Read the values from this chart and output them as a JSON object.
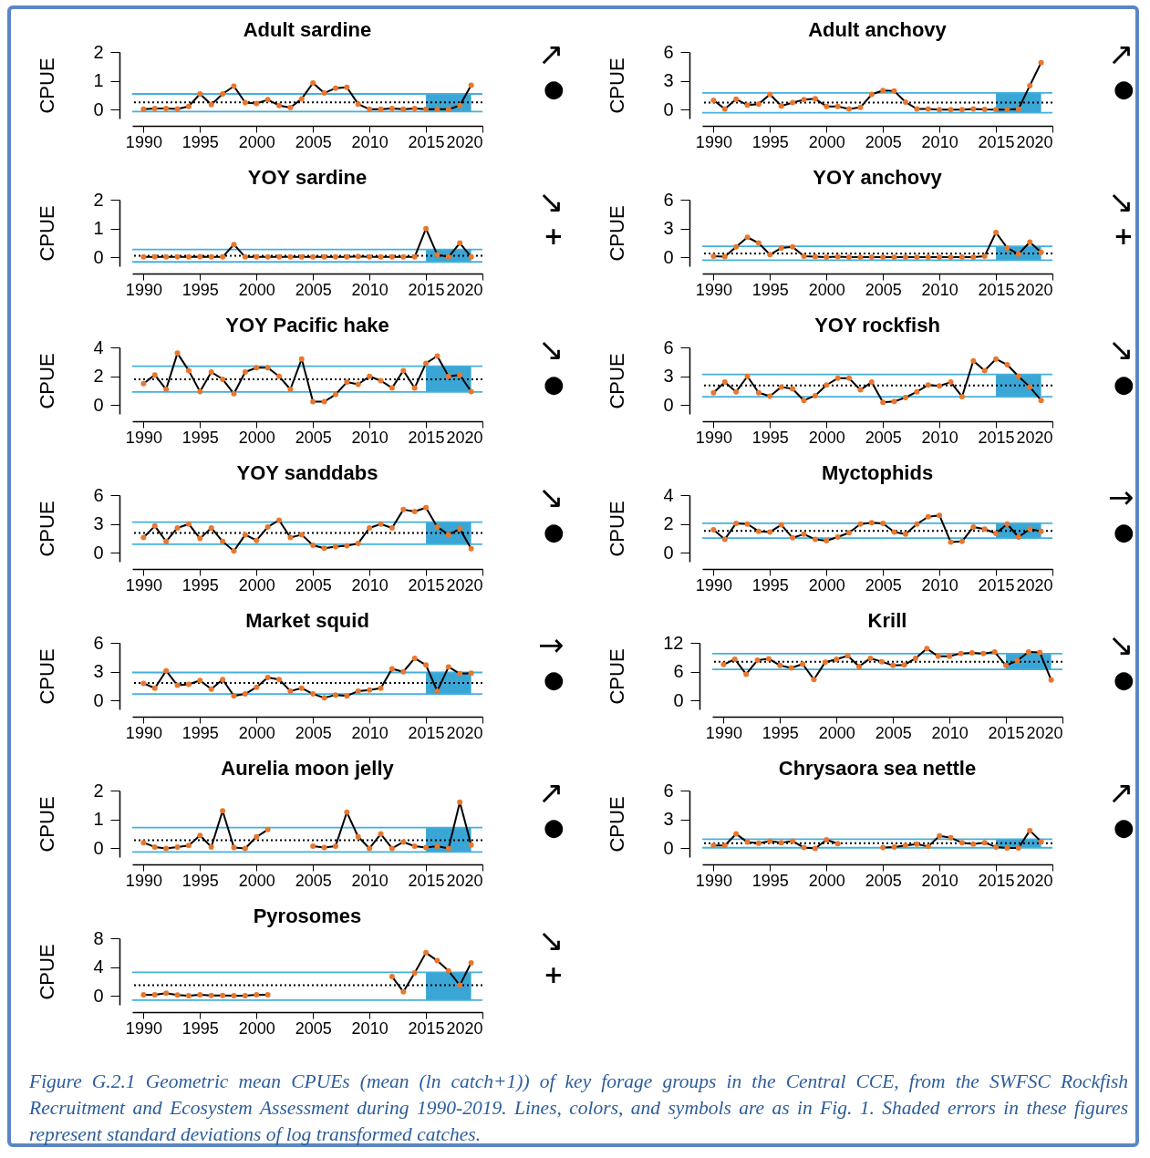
{
  "chart_data": [
    {
      "type": "line",
      "title": "Adult sardine",
      "ylabel": "CPUE",
      "x": [
        1990,
        1991,
        1992,
        1993,
        1994,
        1995,
        1996,
        1997,
        1998,
        1999,
        2000,
        2001,
        2002,
        2003,
        2004,
        2005,
        2006,
        2007,
        2008,
        2009,
        2010,
        2011,
        2012,
        2013,
        2014,
        2015,
        2016,
        2017,
        2018,
        2019
      ],
      "xlim": [
        1989,
        2020
      ],
      "xticks": [
        1990,
        1995,
        2000,
        2005,
        2010,
        2015,
        2020
      ],
      "ylim": [
        -0.3,
        2
      ],
      "yticks": [
        0,
        1,
        2
      ],
      "marker": "circle",
      "line_style": "solid",
      "series": [
        {
          "color": "#000000",
          "values": [
            0.02,
            0.05,
            0.05,
            0.03,
            0.12,
            0.55,
            0.18,
            0.55,
            0.82,
            0.25,
            0.22,
            0.35,
            0.15,
            0.08,
            0.38,
            0.93,
            0.58,
            0.75,
            0.78,
            0.2,
            0.02,
            0.02,
            0.05,
            0.02,
            0.05,
            0.02,
            0.02,
            0.02,
            0.15,
            0.85
          ]
        }
      ],
      "ref_lines": [
        {
          "axis": "y",
          "value": 0.26,
          "color": "#000000",
          "line_style": "dotted"
        },
        {
          "axis": "y",
          "value": 0.55,
          "color": "#45b0dc",
          "line_style": "solid"
        },
        {
          "axis": "y",
          "value": -0.06,
          "color": "#45b0dc",
          "line_style": "solid"
        }
      ],
      "bands": [
        {
          "axis": "x",
          "from": 2015,
          "to": 2019,
          "color": "#3aa6d5"
        }
      ],
      "annotations": [
        "↗",
        "●"
      ]
    },
    {
      "type": "line",
      "title": "Adult anchovy",
      "ylabel": "CPUE",
      "x": [
        1990,
        1991,
        1992,
        1993,
        1994,
        1995,
        1996,
        1997,
        1998,
        1999,
        2000,
        2001,
        2002,
        2003,
        2004,
        2005,
        2006,
        2007,
        2008,
        2009,
        2010,
        2011,
        2012,
        2013,
        2014,
        2015,
        2016,
        2017,
        2018,
        2019
      ],
      "xlim": [
        1989,
        2020
      ],
      "xticks": [
        1990,
        1995,
        2000,
        2005,
        2010,
        2015,
        2020
      ],
      "ylim": [
        -0.9,
        6
      ],
      "yticks": [
        0,
        3,
        6
      ],
      "marker": "circle",
      "line_style": "solid",
      "series": [
        {
          "color": "#000000",
          "values": [
            1.0,
            0.1,
            1.1,
            0.5,
            0.6,
            1.6,
            0.4,
            0.75,
            1.05,
            1.15,
            0.35,
            0.35,
            0.1,
            0.25,
            1.6,
            2.0,
            1.95,
            0.8,
            0.1,
            0.1,
            0.03,
            0.03,
            0.03,
            0.1,
            0.05,
            0.03,
            0.03,
            0.1,
            2.5,
            4.9
          ]
        }
      ],
      "ref_lines": [
        {
          "axis": "y",
          "value": 0.75,
          "color": "#000000",
          "line_style": "dotted"
        },
        {
          "axis": "y",
          "value": 1.75,
          "color": "#45b0dc",
          "line_style": "solid"
        },
        {
          "axis": "y",
          "value": -0.3,
          "color": "#45b0dc",
          "line_style": "solid"
        }
      ],
      "bands": [
        {
          "axis": "x",
          "from": 2015,
          "to": 2019,
          "color": "#3aa6d5"
        }
      ],
      "annotations": [
        "↗",
        "●"
      ]
    },
    {
      "type": "line",
      "title": "YOY sardine",
      "ylabel": "CPUE",
      "x": [
        1990,
        1991,
        1992,
        1993,
        1994,
        1995,
        1996,
        1997,
        1998,
        1999,
        2000,
        2001,
        2002,
        2003,
        2004,
        2005,
        2006,
        2007,
        2008,
        2009,
        2010,
        2011,
        2012,
        2013,
        2014,
        2015,
        2016,
        2017,
        2018,
        2019
      ],
      "xlim": [
        1989,
        2020
      ],
      "xticks": [
        1990,
        1995,
        2000,
        2005,
        2010,
        2015,
        2020
      ],
      "ylim": [
        -0.3,
        2
      ],
      "yticks": [
        0,
        1,
        2
      ],
      "marker": "circle",
      "line_style": "solid",
      "series": [
        {
          "color": "#000000",
          "values": [
            0.02,
            0.02,
            0.02,
            0.02,
            0.02,
            0.03,
            0.02,
            0.02,
            0.45,
            0.02,
            0.02,
            0.02,
            0.02,
            0.02,
            0.02,
            0.02,
            0.02,
            0.02,
            0.02,
            0.04,
            0.02,
            0.02,
            0.02,
            0.02,
            0.02,
            1.0,
            0.1,
            0.02,
            0.5,
            0.02
          ]
        }
      ],
      "ref_lines": [
        {
          "axis": "y",
          "value": 0.06,
          "color": "#000000",
          "line_style": "dotted"
        },
        {
          "axis": "y",
          "value": 0.28,
          "color": "#45b0dc",
          "line_style": "solid"
        },
        {
          "axis": "y",
          "value": -0.15,
          "color": "#45b0dc",
          "line_style": "solid"
        }
      ],
      "bands": [
        {
          "axis": "x",
          "from": 2015,
          "to": 2019,
          "color": "#3aa6d5"
        }
      ],
      "annotations": [
        "↘",
        "+"
      ]
    },
    {
      "type": "line",
      "title": "YOY anchovy",
      "ylabel": "CPUE",
      "x": [
        1990,
        1991,
        1992,
        1993,
        1994,
        1995,
        1996,
        1997,
        1998,
        1999,
        2000,
        2001,
        2002,
        2003,
        2004,
        2005,
        2006,
        2007,
        2008,
        2009,
        2010,
        2011,
        2012,
        2013,
        2014,
        2015,
        2016,
        2017,
        2018,
        2019
      ],
      "xlim": [
        1989,
        2020
      ],
      "xticks": [
        1990,
        1995,
        2000,
        2005,
        2010,
        2015,
        2020
      ],
      "ylim": [
        -0.9,
        6
      ],
      "yticks": [
        0,
        3,
        6
      ],
      "marker": "circle",
      "line_style": "solid",
      "series": [
        {
          "color": "#000000",
          "values": [
            0.15,
            0.1,
            1.1,
            2.1,
            1.5,
            0.3,
            1.0,
            1.1,
            0.15,
            0.1,
            0.05,
            0.1,
            0.05,
            0.05,
            0.05,
            0.05,
            0.05,
            0.05,
            0.05,
            0.05,
            0.05,
            0.05,
            0.05,
            0.05,
            0.15,
            2.6,
            1.0,
            0.35,
            1.6,
            0.55
          ]
        }
      ],
      "ref_lines": [
        {
          "axis": "y",
          "value": 0.42,
          "color": "#000000",
          "line_style": "dotted"
        },
        {
          "axis": "y",
          "value": 1.17,
          "color": "#45b0dc",
          "line_style": "solid"
        },
        {
          "axis": "y",
          "value": -0.28,
          "color": "#45b0dc",
          "line_style": "solid"
        }
      ],
      "bands": [
        {
          "axis": "x",
          "from": 2015,
          "to": 2019,
          "color": "#3aa6d5"
        }
      ],
      "annotations": [
        "↘",
        "+"
      ]
    },
    {
      "type": "line",
      "title": "YOY Pacific hake",
      "ylabel": "CPUE",
      "x": [
        1990,
        1991,
        1992,
        1993,
        1994,
        1995,
        1996,
        1997,
        1998,
        1999,
        2000,
        2001,
        2002,
        2003,
        2004,
        2005,
        2006,
        2007,
        2008,
        2009,
        2010,
        2011,
        2012,
        2013,
        2014,
        2015,
        2016,
        2017,
        2018,
        2019
      ],
      "xlim": [
        1989,
        2020
      ],
      "xticks": [
        1990,
        1995,
        2000,
        2005,
        2010,
        2015,
        2020
      ],
      "ylim": [
        -0.6,
        4
      ],
      "yticks": [
        0,
        2,
        4
      ],
      "marker": "circle",
      "line_style": "solid",
      "series": [
        {
          "color": "#000000",
          "values": [
            1.5,
            2.1,
            1.1,
            3.6,
            2.4,
            0.95,
            2.3,
            1.8,
            0.8,
            2.3,
            2.6,
            2.6,
            2.0,
            1.1,
            3.2,
            0.25,
            0.25,
            0.75,
            1.6,
            1.45,
            2.0,
            1.7,
            1.2,
            2.4,
            1.2,
            2.9,
            3.4,
            2.0,
            2.1,
            0.95
          ]
        }
      ],
      "ref_lines": [
        {
          "axis": "y",
          "value": 1.8,
          "color": "#000000",
          "line_style": "dotted"
        },
        {
          "axis": "y",
          "value": 2.7,
          "color": "#45b0dc",
          "line_style": "solid"
        },
        {
          "axis": "y",
          "value": 0.92,
          "color": "#45b0dc",
          "line_style": "solid"
        }
      ],
      "bands": [
        {
          "axis": "x",
          "from": 2015,
          "to": 2019,
          "color": "#3aa6d5"
        }
      ],
      "annotations": [
        "↘",
        "●"
      ]
    },
    {
      "type": "line",
      "title": "YOY rockfish",
      "ylabel": "CPUE",
      "x": [
        1990,
        1991,
        1992,
        1993,
        1994,
        1995,
        1996,
        1997,
        1998,
        1999,
        2000,
        2001,
        2002,
        2003,
        2004,
        2005,
        2006,
        2007,
        2008,
        2009,
        2010,
        2011,
        2012,
        2013,
        2014,
        2015,
        2016,
        2017,
        2018,
        2019
      ],
      "xlim": [
        1989,
        2020
      ],
      "xticks": [
        1990,
        1995,
        2000,
        2005,
        2010,
        2015,
        2020
      ],
      "ylim": [
        -0.9,
        6
      ],
      "yticks": [
        0,
        3,
        6
      ],
      "marker": "circle",
      "line_style": "solid",
      "series": [
        {
          "color": "#000000",
          "values": [
            1.3,
            2.4,
            1.4,
            3.0,
            1.3,
            0.95,
            1.9,
            1.7,
            0.5,
            1.0,
            2.1,
            2.8,
            2.8,
            1.6,
            2.4,
            0.3,
            0.4,
            0.8,
            1.4,
            2.1,
            2.0,
            2.4,
            0.9,
            4.6,
            3.6,
            4.8,
            4.2,
            3.0,
            1.9,
            0.5
          ]
        }
      ],
      "ref_lines": [
        {
          "axis": "y",
          "value": 2.05,
          "color": "#000000",
          "line_style": "dotted"
        },
        {
          "axis": "y",
          "value": 3.2,
          "color": "#45b0dc",
          "line_style": "solid"
        },
        {
          "axis": "y",
          "value": 0.88,
          "color": "#45b0dc",
          "line_style": "solid"
        }
      ],
      "bands": [
        {
          "axis": "x",
          "from": 2015,
          "to": 2019,
          "color": "#3aa6d5"
        }
      ],
      "annotations": [
        "↘",
        "●"
      ]
    },
    {
      "type": "line",
      "title": "YOY sanddabs",
      "ylabel": "CPUE",
      "x": [
        1990,
        1991,
        1992,
        1993,
        1994,
        1995,
        1996,
        1997,
        1998,
        1999,
        2000,
        2001,
        2002,
        2003,
        2004,
        2005,
        2006,
        2007,
        2008,
        2009,
        2010,
        2011,
        2012,
        2013,
        2014,
        2015,
        2016,
        2017,
        2018,
        2019
      ],
      "xlim": [
        1989,
        2020
      ],
      "xticks": [
        1990,
        1995,
        2000,
        2005,
        2010,
        2015,
        2020
      ],
      "ylim": [
        -0.9,
        6
      ],
      "yticks": [
        0,
        3,
        6
      ],
      "marker": "circle",
      "line_style": "solid",
      "series": [
        {
          "color": "#000000",
          "values": [
            1.6,
            2.8,
            1.2,
            2.6,
            3.0,
            1.5,
            2.6,
            1.2,
            0.2,
            1.9,
            1.3,
            2.7,
            3.4,
            1.6,
            1.9,
            0.8,
            0.5,
            0.65,
            0.75,
            1.0,
            2.6,
            3.0,
            2.6,
            4.5,
            4.3,
            4.7,
            2.7,
            1.9,
            2.5,
            0.45
          ]
        }
      ],
      "ref_lines": [
        {
          "axis": "y",
          "value": 2.08,
          "color": "#000000",
          "line_style": "dotted"
        },
        {
          "axis": "y",
          "value": 3.2,
          "color": "#45b0dc",
          "line_style": "solid"
        },
        {
          "axis": "y",
          "value": 0.9,
          "color": "#45b0dc",
          "line_style": "solid"
        }
      ],
      "bands": [
        {
          "axis": "x",
          "from": 2015,
          "to": 2019,
          "color": "#3aa6d5"
        }
      ],
      "annotations": [
        "↘",
        "●"
      ]
    },
    {
      "type": "line",
      "title": "Myctophids",
      "ylabel": "CPUE",
      "x": [
        1990,
        1991,
        1992,
        1993,
        1994,
        1995,
        1996,
        1997,
        1998,
        1999,
        2000,
        2001,
        2002,
        2003,
        2004,
        2005,
        2006,
        2007,
        2008,
        2009,
        2010,
        2011,
        2012,
        2013,
        2014,
        2015,
        2016,
        2017,
        2018,
        2019
      ],
      "xlim": [
        1989,
        2020
      ],
      "xticks": [
        1990,
        1995,
        2000,
        2005,
        2010,
        2015,
        2020
      ],
      "ylim": [
        -0.6,
        4
      ],
      "yticks": [
        0,
        2,
        4
      ],
      "marker": "circle",
      "line_style": "solid",
      "series": [
        {
          "color": "#000000",
          "values": [
            1.6,
            0.95,
            2.05,
            2.0,
            1.5,
            1.45,
            1.95,
            1.05,
            1.3,
            0.95,
            0.85,
            1.1,
            1.4,
            2.0,
            2.1,
            2.05,
            1.45,
            1.3,
            2.0,
            2.5,
            2.6,
            0.75,
            0.8,
            1.8,
            1.65,
            1.35,
            2.0,
            1.1,
            1.65,
            1.5
          ]
        }
      ],
      "ref_lines": [
        {
          "axis": "y",
          "value": 1.53,
          "color": "#000000",
          "line_style": "dotted"
        },
        {
          "axis": "y",
          "value": 2.05,
          "color": "#45b0dc",
          "line_style": "solid"
        },
        {
          "axis": "y",
          "value": 1.03,
          "color": "#45b0dc",
          "line_style": "solid"
        }
      ],
      "bands": [
        {
          "axis": "x",
          "from": 2015,
          "to": 2019,
          "color": "#3aa6d5"
        }
      ],
      "annotations": [
        "→",
        "●"
      ]
    },
    {
      "type": "line",
      "title": "Market squid",
      "ylabel": "CPUE",
      "x": [
        1990,
        1991,
        1992,
        1993,
        1994,
        1995,
        1996,
        1997,
        1998,
        1999,
        2000,
        2001,
        2002,
        2003,
        2004,
        2005,
        2006,
        2007,
        2008,
        2009,
        2010,
        2011,
        2012,
        2013,
        2014,
        2015,
        2016,
        2017,
        2018,
        2019
      ],
      "xlim": [
        1989,
        2020
      ],
      "xticks": [
        1990,
        1995,
        2000,
        2005,
        2010,
        2015,
        2020
      ],
      "ylim": [
        -0.9,
        6
      ],
      "yticks": [
        0,
        3,
        6
      ],
      "marker": "circle",
      "line_style": "solid",
      "series": [
        {
          "color": "#000000",
          "values": [
            1.8,
            1.3,
            3.1,
            1.6,
            1.7,
            2.1,
            1.2,
            2.2,
            0.5,
            0.7,
            1.4,
            2.4,
            2.2,
            1.0,
            1.3,
            0.7,
            0.3,
            0.6,
            0.5,
            1.0,
            1.1,
            1.3,
            3.3,
            3.0,
            4.4,
            3.7,
            1.0,
            3.5,
            2.8,
            2.85
          ]
        }
      ],
      "ref_lines": [
        {
          "axis": "y",
          "value": 1.84,
          "color": "#000000",
          "line_style": "dotted"
        },
        {
          "axis": "y",
          "value": 2.93,
          "color": "#45b0dc",
          "line_style": "solid"
        },
        {
          "axis": "y",
          "value": 0.7,
          "color": "#45b0dc",
          "line_style": "solid"
        }
      ],
      "bands": [
        {
          "axis": "x",
          "from": 2015,
          "to": 2019,
          "color": "#3aa6d5"
        }
      ],
      "annotations": [
        "→",
        "●"
      ]
    },
    {
      "type": "line",
      "title": "Krill",
      "ylabel": "CPUE",
      "x": [
        1990,
        1991,
        1992,
        1993,
        1994,
        1995,
        1996,
        1997,
        1998,
        1999,
        2000,
        2001,
        2002,
        2003,
        2004,
        2005,
        2006,
        2007,
        2008,
        2009,
        2010,
        2011,
        2012,
        2013,
        2014,
        2015,
        2016,
        2017,
        2018,
        2019
      ],
      "xlim": [
        1989,
        2020
      ],
      "xticks": [
        1990,
        1995,
        2000,
        2005,
        2010,
        2015,
        2020
      ],
      "ylim": [
        -1.8,
        12
      ],
      "yticks": [
        0,
        6,
        12
      ],
      "marker": "circle",
      "line_style": "solid",
      "series": [
        {
          "color": "#000000",
          "values": [
            7.5,
            8.6,
            5.5,
            8.4,
            8.7,
            7.3,
            6.8,
            7.6,
            4.4,
            8.0,
            8.6,
            9.3,
            7.1,
            8.8,
            8.1,
            7.3,
            7.4,
            8.8,
            10.8,
            9.2,
            9.2,
            9.8,
            9.9,
            9.8,
            10.1,
            7.3,
            8.3,
            10.1,
            10.0,
            4.3
          ]
        }
      ],
      "ref_lines": [
        {
          "axis": "y",
          "value": 8.1,
          "color": "#000000",
          "line_style": "dotted"
        },
        {
          "axis": "y",
          "value": 9.75,
          "color": "#45b0dc",
          "line_style": "solid"
        },
        {
          "axis": "y",
          "value": 6.5,
          "color": "#45b0dc",
          "line_style": "solid"
        }
      ],
      "bands": [
        {
          "axis": "x",
          "from": 2015,
          "to": 2019,
          "color": "#3aa6d5"
        }
      ],
      "annotations": [
        "↘",
        "●"
      ]
    },
    {
      "type": "line",
      "title": "Aurelia moon jelly",
      "ylabel": "CPUE",
      "x": [
        1990,
        1991,
        1992,
        1993,
        1994,
        1995,
        1996,
        1997,
        1998,
        1999,
        2000,
        2001,
        2002,
        2003,
        2004,
        2005,
        2006,
        2007,
        2008,
        2009,
        2010,
        2011,
        2012,
        2013,
        2014,
        2015,
        2016,
        2017,
        2018,
        2019
      ],
      "xlim": [
        1989,
        2020
      ],
      "xticks": [
        1990,
        1995,
        2000,
        2005,
        2010,
        2015,
        2020
      ],
      "ylim": [
        -0.3,
        2
      ],
      "yticks": [
        0,
        1,
        2
      ],
      "marker": "circle",
      "line_style": "solid",
      "series": [
        {
          "color": "#000000",
          "values": [
            0.2,
            0.05,
            0.0,
            0.05,
            0.1,
            0.45,
            0.05,
            1.3,
            0.03,
            0.0,
            0.4,
            0.65,
            null,
            null,
            null,
            0.08,
            0.03,
            0.08,
            1.25,
            0.4,
            0.0,
            0.5,
            0.0,
            0.22,
            0.08,
            0.03,
            0.08,
            0.0,
            1.6,
            0.12
          ]
        }
      ],
      "ref_lines": [
        {
          "axis": "y",
          "value": 0.28,
          "color": "#000000",
          "line_style": "dotted"
        },
        {
          "axis": "y",
          "value": 0.72,
          "color": "#45b0dc",
          "line_style": "solid"
        },
        {
          "axis": "y",
          "value": -0.12,
          "color": "#45b0dc",
          "line_style": "solid"
        }
      ],
      "bands": [
        {
          "axis": "x",
          "from": 2015,
          "to": 2019,
          "color": "#3aa6d5"
        }
      ],
      "annotations": [
        "↗",
        "●"
      ]
    },
    {
      "type": "line",
      "title": "Chrysaora sea nettle",
      "ylabel": "CPUE",
      "x": [
        1990,
        1991,
        1992,
        1993,
        1994,
        1995,
        1996,
        1997,
        1998,
        1999,
        2000,
        2001,
        2002,
        2003,
        2004,
        2005,
        2006,
        2007,
        2008,
        2009,
        2010,
        2011,
        2012,
        2013,
        2014,
        2015,
        2016,
        2017,
        2018,
        2019
      ],
      "xlim": [
        1989,
        2020
      ],
      "xticks": [
        1990,
        1995,
        2000,
        2005,
        2010,
        2015,
        2020
      ],
      "ylim": [
        -0.9,
        6
      ],
      "yticks": [
        0,
        3,
        6
      ],
      "marker": "circle",
      "line_style": "solid",
      "series": [
        {
          "color": "#000000",
          "values": [
            0.3,
            0.3,
            1.5,
            0.65,
            0.55,
            0.75,
            0.6,
            0.75,
            0.1,
            0.0,
            0.9,
            0.5,
            null,
            null,
            null,
            0.1,
            0.15,
            0.3,
            0.45,
            0.2,
            1.3,
            1.1,
            0.6,
            0.45,
            0.6,
            0.15,
            0.05,
            0.05,
            1.85,
            0.7
          ]
        }
      ],
      "ref_lines": [
        {
          "axis": "y",
          "value": 0.53,
          "color": "#000000",
          "line_style": "dotted"
        },
        {
          "axis": "y",
          "value": 0.95,
          "color": "#45b0dc",
          "line_style": "solid"
        },
        {
          "axis": "y",
          "value": 0.07,
          "color": "#45b0dc",
          "line_style": "solid"
        }
      ],
      "bands": [
        {
          "axis": "x",
          "from": 2015,
          "to": 2019,
          "color": "#3aa6d5"
        }
      ],
      "annotations": [
        "↗",
        "●"
      ]
    },
    {
      "type": "line",
      "title": "Pyrosomes",
      "ylabel": "CPUE",
      "x": [
        1990,
        1991,
        1992,
        1993,
        1994,
        1995,
        1996,
        1997,
        1998,
        1999,
        2000,
        2001,
        2002,
        2003,
        2004,
        2005,
        2006,
        2007,
        2008,
        2009,
        2010,
        2011,
        2012,
        2013,
        2014,
        2015,
        2016,
        2017,
        2018,
        2019
      ],
      "xlim": [
        1989,
        2020
      ],
      "xticks": [
        1990,
        1995,
        2000,
        2005,
        2010,
        2015,
        2020
      ],
      "ylim": [
        -1.2,
        8
      ],
      "yticks": [
        0,
        4,
        8
      ],
      "marker": "circle",
      "line_style": "solid",
      "series": [
        {
          "color": "#000000",
          "values": [
            0.2,
            0.2,
            0.4,
            0.15,
            0.05,
            0.2,
            0.1,
            0.1,
            0.05,
            0.05,
            0.2,
            0.2,
            null,
            null,
            null,
            null,
            null,
            null,
            null,
            null,
            null,
            null,
            2.7,
            0.6,
            3.2,
            6.0,
            4.9,
            3.5,
            1.5,
            4.6
          ]
        }
      ],
      "ref_lines": [
        {
          "axis": "y",
          "value": 1.5,
          "color": "#000000",
          "line_style": "dotted"
        },
        {
          "axis": "y",
          "value": 3.3,
          "color": "#45b0dc",
          "line_style": "solid"
        },
        {
          "axis": "y",
          "value": -0.55,
          "color": "#45b0dc",
          "line_style": "solid"
        }
      ],
      "bands": [
        {
          "axis": "x",
          "from": 2015,
          "to": 2019,
          "color": "#3aa6d5"
        }
      ],
      "annotations": [
        "↘",
        "+",
        "Figure G.2.1 Geometric mean CPUEs (mean (ln catch+1)) of key forage groups in the Central CCE, from the SWFSC Rockfish Recruitment and Ecosystem Assessment during 1990-2019. Lines, colors, and symbols are as in Fig. 1. Shaded errors in these figures represent standard deviations of log transformed catches."
      ]
    }
  ]
}
